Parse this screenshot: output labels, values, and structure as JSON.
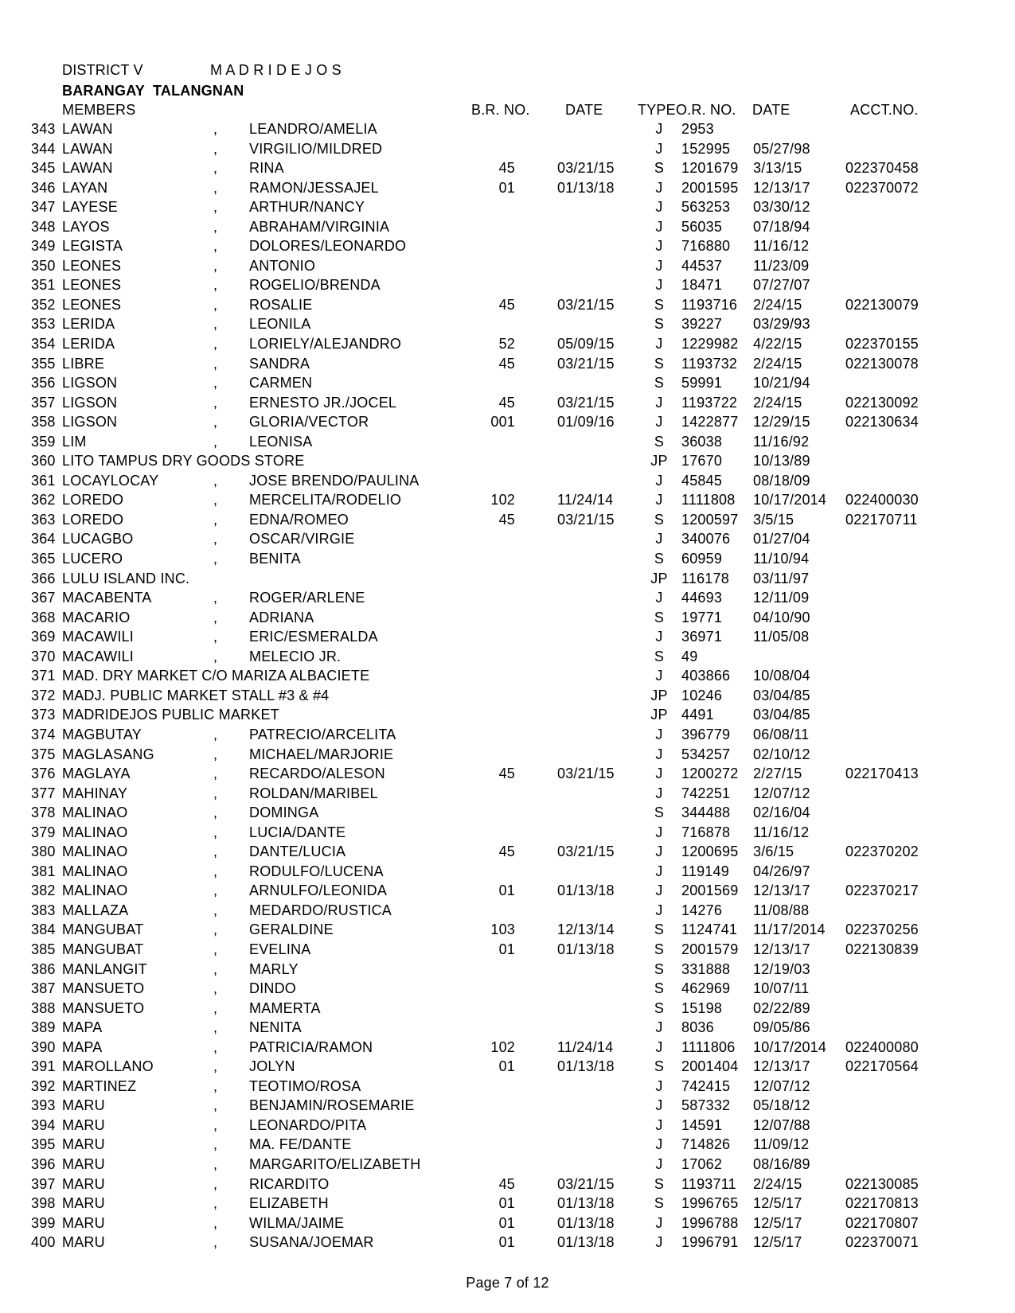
{
  "page": {
    "district_label": "DISTRICT V",
    "municipality": "M A D R I D E J O S",
    "barangay": "BARANGAY  TALANGNAN",
    "members_label": "MEMBERS",
    "footer": "Page 7 of 12"
  },
  "columns": {
    "br_no": "B.R. NO.",
    "date1": "DATE",
    "type": "TYPE",
    "or_no": "O.R. NO.",
    "date2": "DATE",
    "acct": "ACCT.NO."
  },
  "rows": [
    {
      "no": "343",
      "surname": "LAWAN",
      "comma": ",",
      "given": "LEANDRO/AMELIA",
      "br": "",
      "brdate": "",
      "type": "J",
      "or": "2953",
      "ordate": "",
      "acct": ""
    },
    {
      "no": "344",
      "surname": "LAWAN",
      "comma": ",",
      "given": "VIRGILIO/MILDRED",
      "br": "",
      "brdate": "",
      "type": "J",
      "or": "152995",
      "ordate": "05/27/98",
      "acct": ""
    },
    {
      "no": "345",
      "surname": "LAWAN",
      "comma": ",",
      "given": "RINA",
      "br": "45",
      "brdate": "03/21/15",
      "type": "S",
      "or": "1201679",
      "ordate": "3/13/15",
      "acct": "022370458"
    },
    {
      "no": "346",
      "surname": "LAYAN",
      "comma": ",",
      "given": "RAMON/JESSAJEL",
      "br": "01",
      "brdate": "01/13/18",
      "type": "J",
      "or": "2001595",
      "ordate": "12/13/17",
      "acct": "022370072"
    },
    {
      "no": "347",
      "surname": "LAYESE",
      "comma": ",",
      "given": "ARTHUR/NANCY",
      "br": "",
      "brdate": "",
      "type": "J",
      "or": "563253",
      "ordate": "03/30/12",
      "acct": ""
    },
    {
      "no": "348",
      "surname": "LAYOS",
      "comma": ",",
      "given": "ABRAHAM/VIRGINIA",
      "br": "",
      "brdate": "",
      "type": "J",
      "or": "56035",
      "ordate": "07/18/94",
      "acct": ""
    },
    {
      "no": "349",
      "surname": "LEGISTA",
      "comma": ",",
      "given": "DOLORES/LEONARDO",
      "br": "",
      "brdate": "",
      "type": "J",
      "or": "716880",
      "ordate": "11/16/12",
      "acct": ""
    },
    {
      "no": "350",
      "surname": "LEONES",
      "comma": ",",
      "given": "ANTONIO",
      "br": "",
      "brdate": "",
      "type": "J",
      "or": "44537",
      "ordate": "11/23/09",
      "acct": ""
    },
    {
      "no": "351",
      "surname": "LEONES",
      "comma": ",",
      "given": "ROGELIO/BRENDA",
      "br": "",
      "brdate": "",
      "type": "J",
      "or": "18471",
      "ordate": "07/27/07",
      "acct": ""
    },
    {
      "no": "352",
      "surname": "LEONES",
      "comma": ",",
      "given": "ROSALIE",
      "br": "45",
      "brdate": "03/21/15",
      "type": "S",
      "or": "1193716",
      "ordate": "2/24/15",
      "acct": "022130079"
    },
    {
      "no": "353",
      "surname": "LERIDA",
      "comma": ",",
      "given": "LEONILA",
      "br": "",
      "brdate": "",
      "type": "S",
      "or": "39227",
      "ordate": "03/29/93",
      "acct": ""
    },
    {
      "no": "354",
      "surname": "LERIDA",
      "comma": ",",
      "given": "LORIELY/ALEJANDRO",
      "br": "52",
      "brdate": "05/09/15",
      "type": "J",
      "or": "1229982",
      "ordate": "4/22/15",
      "acct": "022370155"
    },
    {
      "no": "355",
      "surname": "LIBRE",
      "comma": ",",
      "given": "SANDRA",
      "br": "45",
      "brdate": "03/21/15",
      "type": "S",
      "or": "1193732",
      "ordate": "2/24/15",
      "acct": "022130078"
    },
    {
      "no": "356",
      "surname": "LIGSON",
      "comma": ",",
      "given": "CARMEN",
      "br": "",
      "brdate": "",
      "type": "S",
      "or": "59991",
      "ordate": "10/21/94",
      "acct": ""
    },
    {
      "no": "357",
      "surname": "LIGSON",
      "comma": ",",
      "given": "ERNESTO JR./JOCEL",
      "br": "45",
      "brdate": "03/21/15",
      "type": "J",
      "or": "1193722",
      "ordate": "2/24/15",
      "acct": "022130092"
    },
    {
      "no": "358",
      "surname": "LIGSON",
      "comma": ",",
      "given": "GLORIA/VECTOR",
      "br": "001",
      "brdate": "01/09/16",
      "type": "J",
      "or": "1422877",
      "ordate": "12/29/15",
      "acct": "022130634"
    },
    {
      "no": "359",
      "surname": "LIM",
      "comma": ",",
      "given": "LEONISA",
      "br": "",
      "brdate": "",
      "type": "S",
      "or": "36038",
      "ordate": "11/16/92",
      "acct": ""
    },
    {
      "no": "360",
      "surname": "LITO TAMPUS DRY GOODS STORE",
      "comma": "",
      "given": "",
      "br": "",
      "brdate": "",
      "type": "JP",
      "or": "17670",
      "ordate": "10/13/89",
      "acct": ""
    },
    {
      "no": "361",
      "surname": "LOCAYLOCAY",
      "comma": ",",
      "given": "JOSE BRENDO/PAULINA",
      "br": "",
      "brdate": "",
      "type": "J",
      "or": "45845",
      "ordate": "08/18/09",
      "acct": ""
    },
    {
      "no": "362",
      "surname": "LOREDO",
      "comma": ",",
      "given": "MERCELITA/RODELIO",
      "br": "102",
      "brdate": "11/24/14",
      "type": "J",
      "or": "1111808",
      "ordate": "10/17/2014",
      "acct": "022400030"
    },
    {
      "no": "363",
      "surname": "LOREDO",
      "comma": ",",
      "given": "EDNA/ROMEO",
      "br": "45",
      "brdate": "03/21/15",
      "type": "S",
      "or": "1200597",
      "ordate": "3/5/15",
      "acct": "022170711"
    },
    {
      "no": "364",
      "surname": "LUCAGBO",
      "comma": ",",
      "given": "OSCAR/VIRGIE",
      "br": "",
      "brdate": "",
      "type": "J",
      "or": "340076",
      "ordate": "01/27/04",
      "acct": ""
    },
    {
      "no": "365",
      "surname": "LUCERO",
      "comma": ",",
      "given": "BENITA",
      "br": "",
      "brdate": "",
      "type": "S",
      "or": "60959",
      "ordate": "11/10/94",
      "acct": ""
    },
    {
      "no": "366",
      "surname": "LULU ISLAND INC.",
      "comma": "",
      "given": "",
      "br": "",
      "brdate": "",
      "type": "JP",
      "or": "116178",
      "ordate": "03/11/97",
      "acct": ""
    },
    {
      "no": "367",
      "surname": "MACABENTA",
      "comma": ",",
      "given": "ROGER/ARLENE",
      "br": "",
      "brdate": "",
      "type": "J",
      "or": "44693",
      "ordate": "12/11/09",
      "acct": ""
    },
    {
      "no": "368",
      "surname": "MACARIO",
      "comma": ",",
      "given": "ADRIANA",
      "br": "",
      "brdate": "",
      "type": "S",
      "or": "19771",
      "ordate": "04/10/90",
      "acct": ""
    },
    {
      "no": "369",
      "surname": "MACAWILI",
      "comma": ",",
      "given": "ERIC/ESMERALDA",
      "br": "",
      "brdate": "",
      "type": "J",
      "or": "36971",
      "ordate": "11/05/08",
      "acct": ""
    },
    {
      "no": "370",
      "surname": "MACAWILI",
      "comma": ",",
      "given": "MELECIO JR.",
      "br": "",
      "brdate": "",
      "type": "S",
      "or": "49",
      "ordate": "",
      "acct": ""
    },
    {
      "no": "371",
      "surname": "MAD. DRY MARKET C/O MARIZA ALBACIETE",
      "comma": "",
      "given": "",
      "br": "",
      "brdate": "",
      "type": "J",
      "or": "403866",
      "ordate": "10/08/04",
      "acct": ""
    },
    {
      "no": "372",
      "surname": "MADJ. PUBLIC MARKET STALL #3 & #4",
      "comma": "",
      "given": "",
      "br": "",
      "brdate": "",
      "type": "JP",
      "or": "10246",
      "ordate": "03/04/85",
      "acct": ""
    },
    {
      "no": "373",
      "surname": "MADRIDEJOS PUBLIC MARKET",
      "comma": "",
      "given": "",
      "br": "",
      "brdate": "",
      "type": "JP",
      "or": "4491",
      "ordate": "03/04/85",
      "acct": ""
    },
    {
      "no": "374",
      "surname": "MAGBUTAY",
      "comma": ",",
      "given": "PATRECIO/ARCELITA",
      "br": "",
      "brdate": "",
      "type": "J",
      "or": "396779",
      "ordate": "06/08/11",
      "acct": ""
    },
    {
      "no": "375",
      "surname": "MAGLASANG",
      "comma": ",",
      "given": "MICHAEL/MARJORIE",
      "br": "",
      "brdate": "",
      "type": "J",
      "or": "534257",
      "ordate": "02/10/12",
      "acct": ""
    },
    {
      "no": "376",
      "surname": "MAGLAYA",
      "comma": ",",
      "given": "RECARDO/ALESON",
      "br": "45",
      "brdate": "03/21/15",
      "type": "J",
      "or": "1200272",
      "ordate": "2/27/15",
      "acct": "022170413"
    },
    {
      "no": "377",
      "surname": "MAHINAY",
      "comma": ",",
      "given": "ROLDAN/MARIBEL",
      "br": "",
      "brdate": "",
      "type": "J",
      "or": "742251",
      "ordate": "12/07/12",
      "acct": ""
    },
    {
      "no": "378",
      "surname": "MALINAO",
      "comma": ",",
      "given": "DOMINGA",
      "br": "",
      "brdate": "",
      "type": "S",
      "or": "344488",
      "ordate": "02/16/04",
      "acct": ""
    },
    {
      "no": "379",
      "surname": "MALINAO",
      "comma": ",",
      "given": "LUCIA/DANTE",
      "br": "",
      "brdate": "",
      "type": "J",
      "or": "716878",
      "ordate": "11/16/12",
      "acct": ""
    },
    {
      "no": "380",
      "surname": "MALINAO",
      "comma": ",",
      "given": "DANTE/LUCIA",
      "br": "45",
      "brdate": "03/21/15",
      "type": "J",
      "or": "1200695",
      "ordate": "3/6/15",
      "acct": "022370202"
    },
    {
      "no": "381",
      "surname": "MALINAO",
      "comma": ",",
      "given": "RODULFO/LUCENA",
      "br": "",
      "brdate": "",
      "type": "J",
      "or": "119149",
      "ordate": "04/26/97",
      "acct": ""
    },
    {
      "no": "382",
      "surname": "MALINAO",
      "comma": ",",
      "given": "ARNULFO/LEONIDA",
      "br": "01",
      "brdate": "01/13/18",
      "type": "J",
      "or": "2001569",
      "ordate": "12/13/17",
      "acct": "022370217"
    },
    {
      "no": "383",
      "surname": "MALLAZA",
      "comma": ",",
      "given": "MEDARDO/RUSTICA",
      "br": "",
      "brdate": "",
      "type": "J",
      "or": "14276",
      "ordate": "11/08/88",
      "acct": ""
    },
    {
      "no": "384",
      "surname": "MANGUBAT",
      "comma": ",",
      "given": "GERALDINE",
      "br": "103",
      "brdate": "12/13/14",
      "type": "S",
      "or": "1124741",
      "ordate": "11/17/2014",
      "acct": "022370256"
    },
    {
      "no": "385",
      "surname": "MANGUBAT",
      "comma": ",",
      "given": "EVELINA",
      "br": "01",
      "brdate": "01/13/18",
      "type": "S",
      "or": "2001579",
      "ordate": "12/13/17",
      "acct": "022130839"
    },
    {
      "no": "386",
      "surname": "MANLANGIT",
      "comma": ",",
      "given": "MARLY",
      "br": "",
      "brdate": "",
      "type": "S",
      "or": "331888",
      "ordate": "12/19/03",
      "acct": ""
    },
    {
      "no": "387",
      "surname": "MANSUETO",
      "comma": ",",
      "given": "DINDO",
      "br": "",
      "brdate": "",
      "type": "S",
      "or": "462969",
      "ordate": "10/07/11",
      "acct": ""
    },
    {
      "no": "388",
      "surname": "MANSUETO",
      "comma": ",",
      "given": "MAMERTA",
      "br": "",
      "brdate": "",
      "type": "S",
      "or": "15198",
      "ordate": "02/22/89",
      "acct": ""
    },
    {
      "no": "389",
      "surname": "MAPA",
      "comma": ",",
      "given": "NENITA",
      "br": "",
      "brdate": "",
      "type": "J",
      "or": "8036",
      "ordate": "09/05/86",
      "acct": ""
    },
    {
      "no": "390",
      "surname": "MAPA",
      "comma": ",",
      "given": "PATRICIA/RAMON",
      "br": "102",
      "brdate": "11/24/14",
      "type": "J",
      "or": "1111806",
      "ordate": "10/17/2014",
      "acct": "022400080"
    },
    {
      "no": "391",
      "surname": "MAROLLANO",
      "comma": ",",
      "given": "JOLYN",
      "br": "01",
      "brdate": "01/13/18",
      "type": "S",
      "or": "2001404",
      "ordate": "12/13/17",
      "acct": "022170564"
    },
    {
      "no": "392",
      "surname": "MARTINEZ",
      "comma": ",",
      "given": "TEOTIMO/ROSA",
      "br": "",
      "brdate": "",
      "type": "J",
      "or": "742415",
      "ordate": "12/07/12",
      "acct": ""
    },
    {
      "no": "393",
      "surname": "MARU",
      "comma": ",",
      "given": "BENJAMIN/ROSEMARIE",
      "br": "",
      "brdate": "",
      "type": "J",
      "or": "587332",
      "ordate": "05/18/12",
      "acct": ""
    },
    {
      "no": "394",
      "surname": "MARU",
      "comma": ",",
      "given": "LEONARDO/PITA",
      "br": "",
      "brdate": "",
      "type": "J",
      "or": "14591",
      "ordate": "12/07/88",
      "acct": ""
    },
    {
      "no": "395",
      "surname": "MARU",
      "comma": ",",
      "given": "MA. FE/DANTE",
      "br": "",
      "brdate": "",
      "type": "J",
      "or": "714826",
      "ordate": "11/09/12",
      "acct": ""
    },
    {
      "no": "396",
      "surname": "MARU",
      "comma": ",",
      "given": "MARGARITO/ELIZABETH",
      "br": "",
      "brdate": "",
      "type": "J",
      "or": "17062",
      "ordate": "08/16/89",
      "acct": ""
    },
    {
      "no": "397",
      "surname": "MARU",
      "comma": ",",
      "given": "RICARDITO",
      "br": "45",
      "brdate": "03/21/15",
      "type": "S",
      "or": "1193711",
      "ordate": "2/24/15",
      "acct": "022130085"
    },
    {
      "no": "398",
      "surname": "MARU",
      "comma": ",",
      "given": "ELIZABETH",
      "br": "01",
      "brdate": "01/13/18",
      "type": "S",
      "or": "1996765",
      "ordate": "12/5/17",
      "acct": "022170813"
    },
    {
      "no": "399",
      "surname": "MARU",
      "comma": ",",
      "given": "WILMA/JAIME",
      "br": "01",
      "brdate": "01/13/18",
      "type": "J",
      "or": "1996788",
      "ordate": "12/5/17",
      "acct": "022170807"
    },
    {
      "no": "400",
      "surname": "MARU",
      "comma": ",",
      "given": "SUSANA/JOEMAR",
      "br": "01",
      "brdate": "01/13/18",
      "type": "J",
      "or": "1996791",
      "ordate": "12/5/17",
      "acct": "022370071"
    }
  ]
}
